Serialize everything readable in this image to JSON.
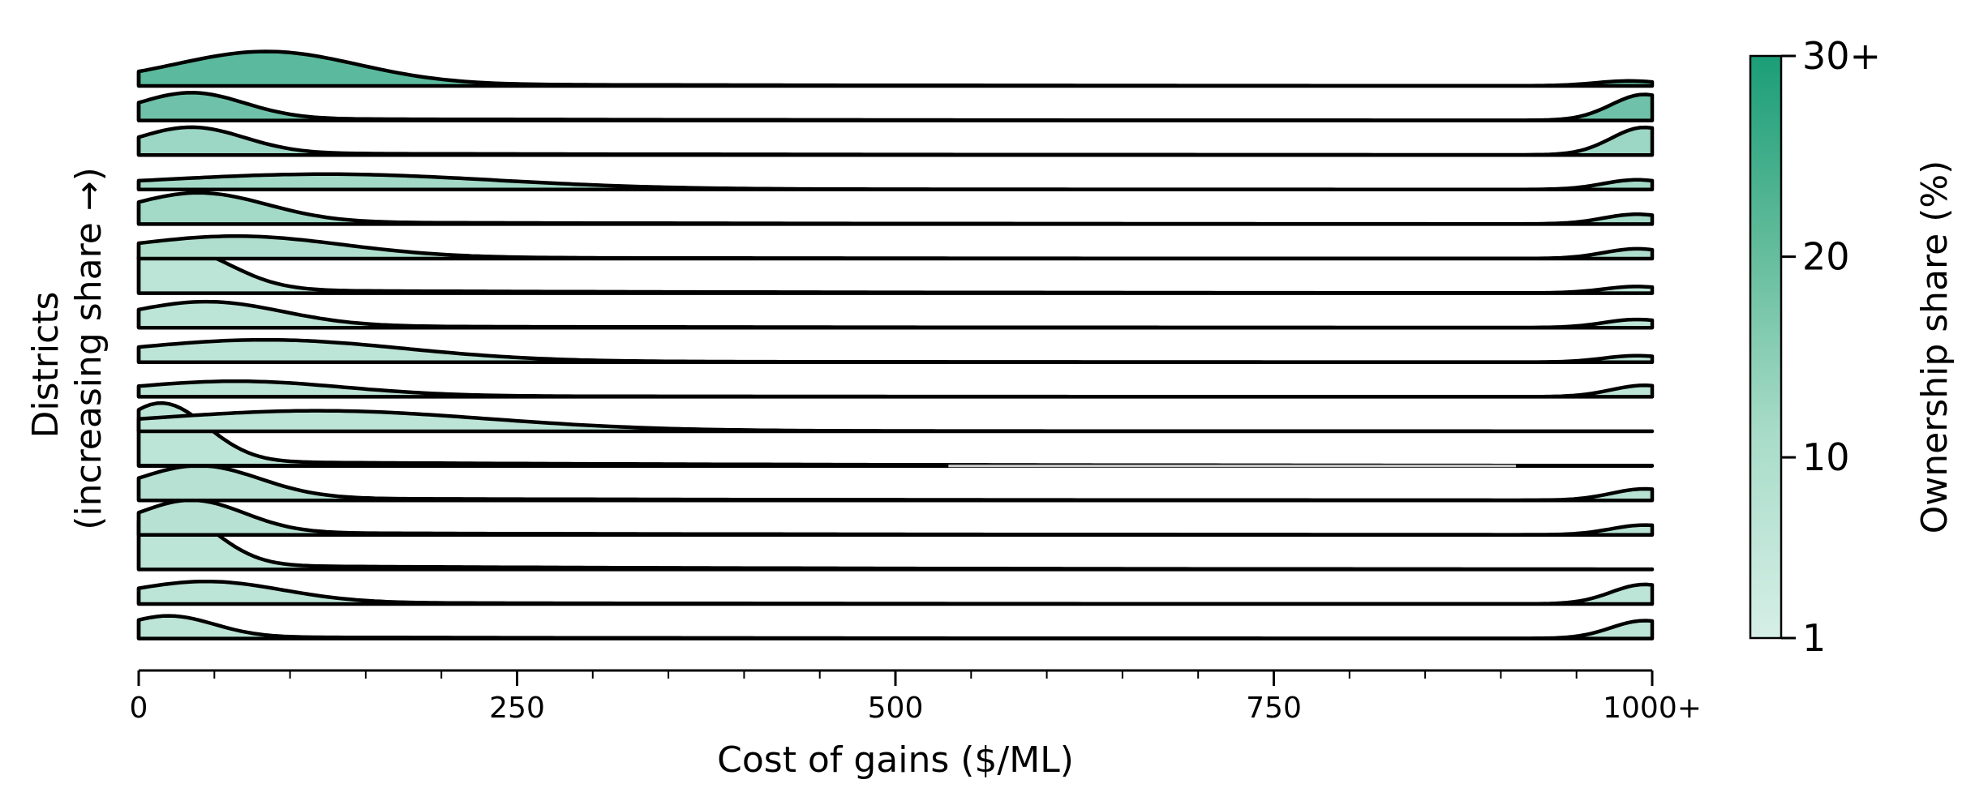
{
  "chart_data": {
    "type": "area",
    "subtype": "ridgeline",
    "xlabel": "Cost of gains ($/ML)",
    "ylabel_line1": "Districts",
    "ylabel_line2": "(increasing share →)",
    "x_ticks": [
      "0",
      "250",
      "500",
      "750",
      "1000+"
    ],
    "x_tick_values": [
      0,
      250,
      500,
      750,
      1000
    ],
    "xlim": [
      0,
      1000
    ],
    "colorbar": {
      "label": "Ownership share (%)",
      "ticks": [
        "1",
        "10",
        "20",
        "30+"
      ],
      "tick_values": [
        1,
        10,
        20,
        30
      ],
      "range": [
        1,
        30
      ],
      "color_low": "#d6efe6",
      "color_high": "#1b9e77"
    },
    "grid": false,
    "series": [
      {
        "peak_x": 85,
        "width": 60,
        "peak": 1.0,
        "tail_x": 985,
        "tail_h": 0.15,
        "share": 20
      },
      {
        "peak_x": 35,
        "width": 35,
        "peak": 0.8,
        "tail_x": 995,
        "tail_h": 0.8,
        "share": 17
      },
      {
        "peak_x": 35,
        "width": 35,
        "peak": 0.8,
        "tail_x": 995,
        "tail_h": 0.85,
        "share": 10
      },
      {
        "peak_x": 125,
        "width": 110,
        "peak": 0.45,
        "tail_x": 990,
        "tail_h": 0.3,
        "share": 9
      },
      {
        "peak_x": 40,
        "width": 45,
        "peak": 0.9,
        "tail_x": 990,
        "tail_h": 0.3,
        "share": 9
      },
      {
        "peak_x": 65,
        "width": 70,
        "peak": 0.65,
        "tail_x": 990,
        "tail_h": 0.3,
        "share": 7
      },
      {
        "peak_x": 25,
        "width": 35,
        "peak": 1.3,
        "tail_x": 990,
        "tail_h": 0.2,
        "share": 5
      },
      {
        "peak_x": 45,
        "width": 50,
        "peak": 0.75,
        "tail_x": 990,
        "tail_h": 0.25,
        "share": 5
      },
      {
        "peak_x": 85,
        "width": 90,
        "peak": 0.65,
        "tail_x": 990,
        "tail_h": 0.2,
        "share": 5
      },
      {
        "peak_x": 65,
        "width": 70,
        "peak": 0.45,
        "tail_x": 995,
        "tail_h": 0.35,
        "share": 5
      },
      {
        "peak_x": 120,
        "width": 110,
        "peak": 0.6,
        "tail_x": 990,
        "tail_h": 0.0,
        "share": 5
      },
      {
        "peak_x": 15,
        "width": 30,
        "peak": 1.8,
        "tail_x": 990,
        "tail_h": 0.0,
        "share": 5
      },
      {
        "peak_x": 40,
        "width": 40,
        "peak": 1.0,
        "tail_x": 995,
        "tail_h": 0.35,
        "share": 6
      },
      {
        "peak_x": 35,
        "width": 35,
        "peak": 1.0,
        "tail_x": 995,
        "tail_h": 0.3,
        "share": 6
      },
      {
        "peak_x": 20,
        "width": 30,
        "peak": 1.7,
        "tail_x": 990,
        "tail_h": 0.0,
        "share": 5
      },
      {
        "peak_x": 45,
        "width": 50,
        "peak": 0.65,
        "tail_x": 995,
        "tail_h": 0.6,
        "share": 5
      },
      {
        "peak_x": 20,
        "width": 30,
        "peak": 0.65,
        "tail_x": 995,
        "tail_h": 0.55,
        "share": 5
      }
    ],
    "gap_row_index": 10,
    "gap_range": [
      535,
      910
    ]
  }
}
